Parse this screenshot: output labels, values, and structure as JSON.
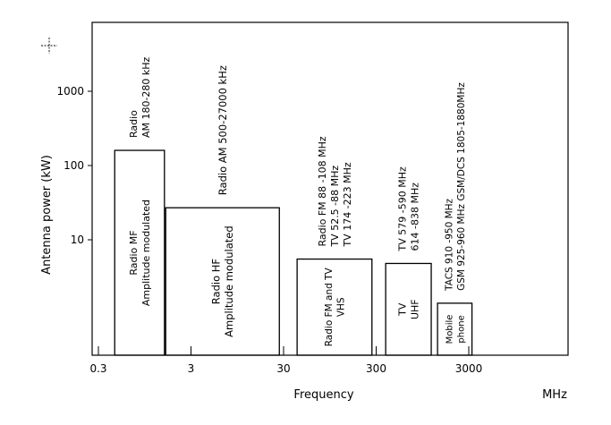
{
  "chart_data": {
    "type": "bar",
    "title": "",
    "xlabel": "Frequency",
    "xunit": "MHz",
    "ylabel": "Antenna power  (kW)",
    "xscale": "log",
    "yscale": "log",
    "x_ticks": [
      {
        "value": 0.3,
        "label": "0.3"
      },
      {
        "value": 3,
        "label": "3"
      },
      {
        "value": 30,
        "label": "30"
      },
      {
        "value": 300,
        "label": "300"
      },
      {
        "value": 3000,
        "label": "3000"
      }
    ],
    "y_ticks": [
      {
        "value": 10,
        "label": "10"
      },
      {
        "value": 100,
        "label": "100"
      },
      {
        "value": 1000,
        "label": "1000"
      }
    ],
    "bars": [
      {
        "name": "Radio MF",
        "inner_lines": [
          "Radio  MF",
          "Amplitude modulated"
        ],
        "x_start": 0.45,
        "x_end": 1.55,
        "power_kw": 160,
        "top_lines": [
          "Radio",
          "AM 180-280 kHz"
        ]
      },
      {
        "name": "Radio HF",
        "inner_lines": [
          "Radio  HF",
          "Amplitude modulated"
        ],
        "x_start": 1.6,
        "x_end": 27,
        "power_kw": 27,
        "top_lines": [
          "Radio AM 500-27000 kHz"
        ]
      },
      {
        "name": "Radio FM and TV VHS",
        "inner_lines": [
          "Radio FM and TV",
          "VHS"
        ],
        "x_start": 42,
        "x_end": 270,
        "power_kw": 5.5,
        "top_lines": [
          "Radio FM 88 -108 MHz",
          "TV 52.5 -88 MHz",
          "TV 174 -223 MHz"
        ]
      },
      {
        "name": "TV UHF",
        "inner_lines": [
          "TV",
          "UHF"
        ],
        "x_start": 380,
        "x_end": 1180,
        "power_kw": 4.8,
        "top_lines": [
          "TV  579 -590 MHz",
          "614 -838 MHz"
        ]
      },
      {
        "name": "Mobile phone",
        "inner_lines": [
          "Mobile",
          "phone"
        ],
        "x_start": 1380,
        "x_end": 3250,
        "power_kw": 1.4,
        "top_lines": [
          "TACS 910 -950 MHz",
          "GSM 925-960 MHz  GSM/DCS 1805-1880MHz"
        ]
      }
    ],
    "grid": false,
    "legend": "none"
  }
}
